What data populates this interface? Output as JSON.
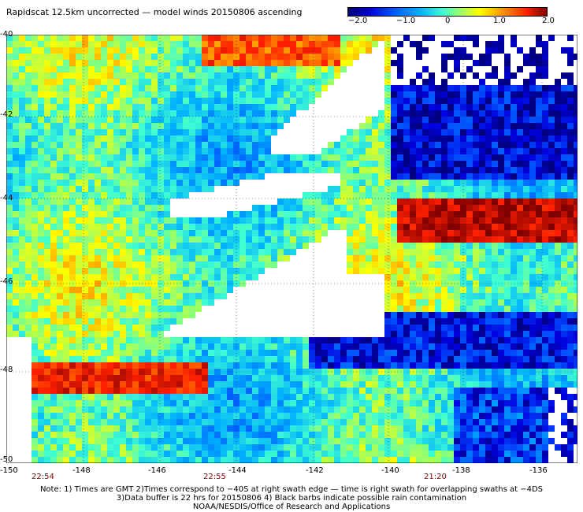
{
  "header": {
    "title": "Rapidscat 12.5km uncorrected — model winds 20150806 ascending"
  },
  "colorbar": {
    "labels": [
      "−2.0",
      "−1.0",
      "0",
      "1.0",
      "2.0"
    ]
  },
  "map": {
    "lat_labels": [
      "-40",
      "-42",
      "-44",
      "-46",
      "-48",
      "-50"
    ],
    "lon_labels": [
      "-150",
      "-148",
      "-146",
      "-144",
      "-142",
      "-140",
      "-138",
      "-136"
    ],
    "time_labels": [
      "22:54",
      "22:55",
      "21:20"
    ]
  },
  "footer": {
    "line1": "Note: 1) Times are GMT 2)Times correspond to −40S at right swath edge — time is right swath for overlapping swaths at −4DS",
    "line2": "3)Data buffer is 22 hrs for 20150806 4) Black barbs indicate possible rain contamination",
    "line3": "NOAA/NESDIS/Office of Research and Applications"
  }
}
